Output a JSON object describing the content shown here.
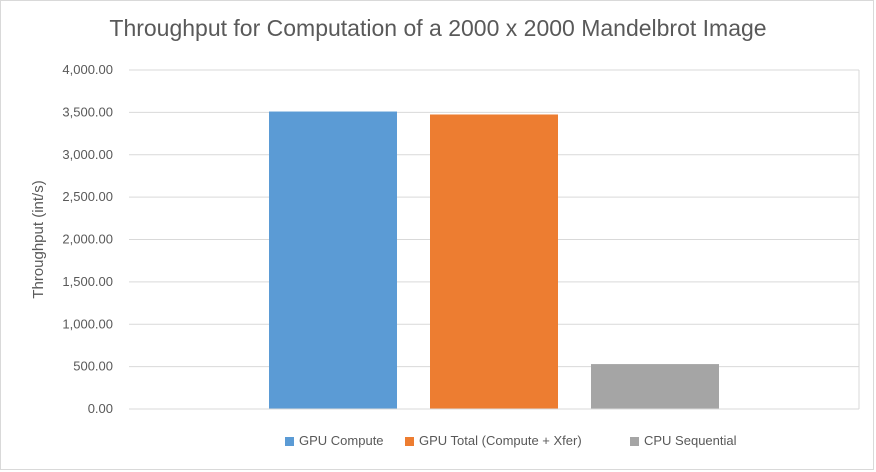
{
  "chart_data": {
    "type": "bar",
    "title": "Throughput for Computation of a 2000 x 2000 Mandelbrot Image",
    "xlabel": "",
    "ylabel": "Throughput (int/s)",
    "ylim": [
      0,
      4000
    ],
    "yticks": [
      "0.00",
      "500.00",
      "1,000.00",
      "1,500.00",
      "2,000.00",
      "2,500.00",
      "3,000.00",
      "3,500.00",
      "4,000.00"
    ],
    "grid": true,
    "legend_position": "bottom",
    "categories": [
      ""
    ],
    "series": [
      {
        "name": "GPU Compute",
        "values": [
          3510
        ],
        "color": "#5b9bd5"
      },
      {
        "name": "GPU Total (Compute + Xfer)",
        "values": [
          3475
        ],
        "color": "#ed7d31"
      },
      {
        "name": "CPU Sequential",
        "values": [
          530
        ],
        "color": "#a5a5a5"
      }
    ]
  }
}
